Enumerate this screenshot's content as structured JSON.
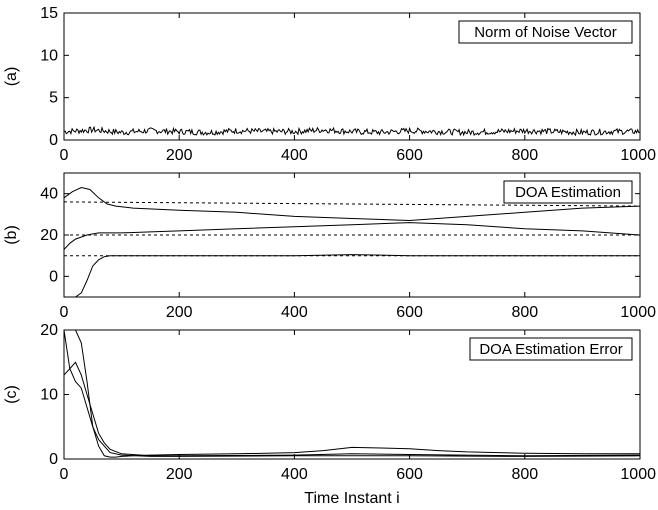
{
  "chart_data": [
    {
      "type": "line",
      "panel_label": "(a)",
      "legend": "Norm of Noise Vector",
      "legend_position": "top-right",
      "xlim": [
        0,
        1000
      ],
      "ylim": [
        0,
        15
      ],
      "xticks": [
        0,
        200,
        400,
        600,
        800,
        1000
      ],
      "yticks": [
        0,
        5,
        10,
        15
      ],
      "xlabel": "",
      "series": [
        {
          "style": "solid",
          "x": [
            0,
            50,
            100,
            150,
            200,
            250,
            300,
            350,
            400,
            450,
            500,
            550,
            600,
            650,
            700,
            750,
            800,
            850,
            900,
            950,
            1000
          ],
          "y": [
            1.0,
            1.2,
            0.9,
            1.1,
            1.0,
            0.9,
            1.1,
            1.0,
            1.0,
            1.2,
            1.0,
            0.9,
            1.1,
            1.0,
            0.9,
            1.0,
            1.1,
            1.0,
            0.9,
            1.0,
            1.0
          ]
        }
      ]
    },
    {
      "type": "line",
      "panel_label": "(b)",
      "legend": "DOA Estimation",
      "legend_position": "top-right",
      "xlim": [
        0,
        1000
      ],
      "ylim": [
        -10,
        50
      ],
      "xticks": [
        0,
        200,
        400,
        600,
        800,
        1000
      ],
      "yticks": [
        0,
        20,
        40
      ],
      "xlabel": "",
      "series": [
        {
          "style": "dashed",
          "x": [
            0,
            1000
          ],
          "y": [
            36,
            34
          ]
        },
        {
          "style": "dashed",
          "x": [
            0,
            1000
          ],
          "y": [
            20,
            20
          ]
        },
        {
          "style": "dashed",
          "x": [
            0,
            1000
          ],
          "y": [
            10,
            10
          ]
        },
        {
          "style": "solid",
          "x": [
            0,
            15,
            30,
            45,
            60,
            75,
            90,
            120,
            200,
            300,
            400,
            500,
            600,
            700,
            800,
            900,
            1000
          ],
          "y": [
            38,
            41,
            43,
            42,
            38,
            35,
            34,
            33,
            32,
            31,
            29,
            28,
            27,
            29,
            31,
            33,
            34
          ]
        },
        {
          "style": "solid",
          "x": [
            0,
            10,
            20,
            40,
            60,
            80,
            100,
            150,
            200,
            300,
            400,
            500,
            600,
            700,
            800,
            900,
            1000
          ],
          "y": [
            13,
            16,
            18,
            20,
            21,
            21,
            21,
            21.5,
            22,
            23,
            24,
            25,
            26,
            25,
            23,
            22,
            20
          ]
        },
        {
          "style": "solid",
          "x": [
            20,
            30,
            40,
            50,
            60,
            70,
            80,
            90,
            100,
            200,
            400,
            500,
            600,
            800,
            1000
          ],
          "y": [
            -10,
            -8,
            -2,
            5,
            8,
            9.5,
            10,
            10,
            10,
            10,
            10,
            10.5,
            10,
            10,
            10
          ]
        }
      ]
    },
    {
      "type": "line",
      "panel_label": "(c)",
      "legend": "DOA Estimation Error",
      "legend_position": "top-right",
      "xlim": [
        0,
        1000
      ],
      "ylim": [
        0,
        20
      ],
      "xticks": [
        0,
        200,
        400,
        600,
        800,
        1000
      ],
      "yticks": [
        0,
        10,
        20
      ],
      "xlabel": "Time Instant i",
      "series": [
        {
          "style": "solid",
          "x": [
            20,
            30,
            40,
            50,
            60,
            70,
            80,
            90,
            100,
            120,
            150,
            200,
            300,
            400,
            450,
            500,
            550,
            600,
            650,
            700,
            800,
            900,
            1000
          ],
          "y": [
            20,
            18,
            12,
            5,
            2,
            0.5,
            0.3,
            0.3,
            0.4,
            0.5,
            0.6,
            0.7,
            0.8,
            1.0,
            1.3,
            1.8,
            1.7,
            1.6,
            1.3,
            1.1,
            0.9,
            0.8,
            0.8
          ]
        },
        {
          "style": "solid",
          "x": [
            0,
            10,
            20,
            30,
            40,
            50,
            60,
            70,
            80,
            100,
            150,
            200,
            400,
            500,
            600,
            800,
            1000
          ],
          "y": [
            20,
            14,
            15,
            13,
            10,
            7,
            4,
            2.5,
            1.5,
            0.8,
            0.5,
            0.5,
            0.6,
            0.8,
            0.7,
            0.5,
            0.6
          ]
        },
        {
          "style": "solid",
          "x": [
            0,
            10,
            20,
            30,
            40,
            50,
            60,
            70,
            80,
            100,
            150,
            200,
            400,
            600,
            800,
            1000
          ],
          "y": [
            13,
            14,
            12,
            11,
            8,
            5,
            3,
            2,
            1,
            0.6,
            0.4,
            0.4,
            0.5,
            0.5,
            0.4,
            0.5
          ]
        }
      ]
    }
  ]
}
